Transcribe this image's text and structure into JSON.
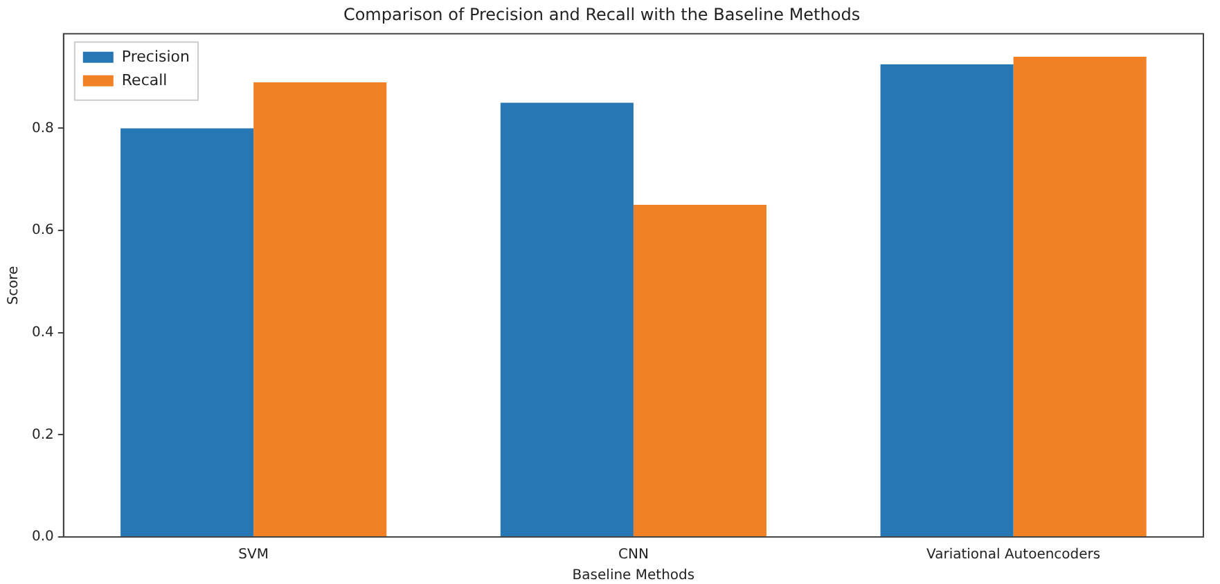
{
  "chart_data": {
    "type": "bar",
    "title": "Comparison of Precision and Recall with the Baseline Methods",
    "xlabel": "Baseline Methods",
    "ylabel": "Score",
    "categories": [
      "SVM",
      "CNN",
      "Variational Autoencoders"
    ],
    "series": [
      {
        "name": "Precision",
        "color": "#2677b4",
        "values": [
          0.8,
          0.85,
          0.925
        ]
      },
      {
        "name": "Recall",
        "color": "#f28024",
        "values": [
          0.89,
          0.65,
          0.94
        ]
      }
    ],
    "ylim": [
      0,
      0.985
    ],
    "yticks": [
      {
        "value": 0,
        "label": "0.0"
      },
      0.2,
      0.4,
      0.6,
      0.8
    ],
    "grid": false,
    "legend": "top left"
  }
}
